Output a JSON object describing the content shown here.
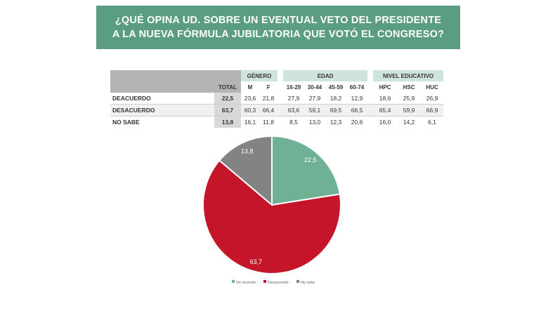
{
  "banner": {
    "line1": "¿QUÉ OPINA UD. SOBRE UN EVENTUAL VETO DEL PRESIDENTE",
    "line2": "A LA NUEVA FÓRMULA JUBILATORIA QUE VOTÓ EL CONGRESO?"
  },
  "table": {
    "groups": {
      "genero": "GÉNERO",
      "edad": "EDAD",
      "nivel": "NIVEL EDUCATIVO"
    },
    "columns": [
      "TOTAL",
      "M",
      "F",
      "16-29",
      "30-44",
      "45-59",
      "60-74",
      "HPC",
      "HSC",
      "HUC"
    ],
    "rows": [
      {
        "label": "DEACUERDO",
        "values": [
          "22,5",
          "23,6",
          "21,8",
          "27,9",
          "27,9",
          "18,2",
          "12,9",
          "18,6",
          "25,9",
          "26,9"
        ]
      },
      {
        "label": "DESACUERDO",
        "values": [
          "63,7",
          "60,3",
          "66,4",
          "63,6",
          "59,1",
          "69,5",
          "66,5",
          "65,4",
          "59,9",
          "66,9"
        ]
      },
      {
        "label": "NO SABE",
        "values": [
          "13,8",
          "16,1",
          "11,8",
          "8,5",
          "13,0",
          "12,3",
          "20,6",
          "16,0",
          "14,2",
          "6,1"
        ]
      }
    ]
  },
  "chart_data": {
    "type": "pie",
    "categories": [
      "De acuerdo",
      "Desacuerdo",
      "No sabe"
    ],
    "values": [
      22.5,
      63.7,
      13.8
    ],
    "labels": [
      "22,5",
      "63,7",
      "13,8"
    ],
    "colors": [
      "#6fb195",
      "#c4152a",
      "#838383"
    ],
    "legend_position": "bottom"
  }
}
